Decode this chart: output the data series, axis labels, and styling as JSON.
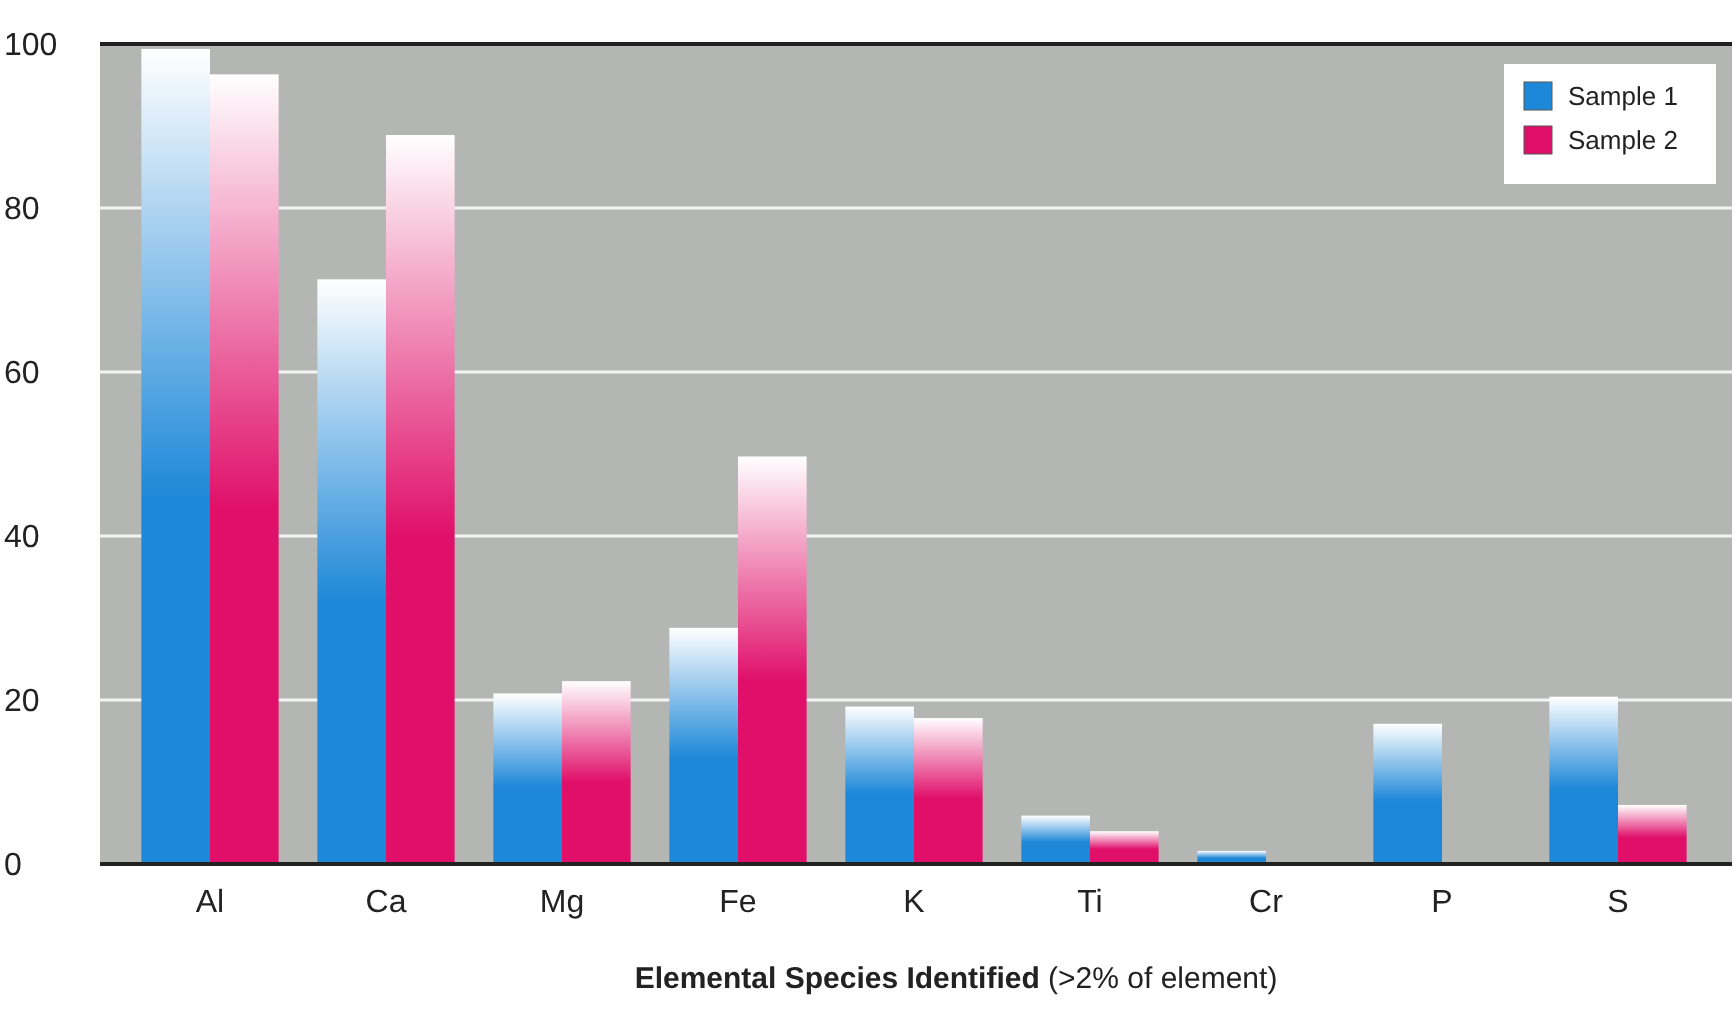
{
  "chart_data": {
    "type": "bar",
    "xlabel": "Elemental Species Identified  (>2% of element)",
    "categories": [
      "Al",
      "Ca",
      "Mg",
      "Fe",
      "K",
      "Ti",
      "Cr",
      "P",
      "S"
    ],
    "series": [
      {
        "name": "Sample 1",
        "color": "#1e88d8",
        "values": [
          99.4,
          71.3,
          20.8,
          28.8,
          19.2,
          5.9,
          1.6,
          17.1,
          20.4
        ]
      },
      {
        "name": "Sample 2",
        "color": "#e0106a",
        "values": [
          96.3,
          88.9,
          22.3,
          49.7,
          17.8,
          4.0,
          null,
          null,
          7.2
        ]
      }
    ],
    "ylim": [
      0,
      100
    ],
    "yticks": [
      0,
      20,
      40,
      60,
      80,
      100
    ],
    "grid": "y",
    "legend": "top right"
  }
}
